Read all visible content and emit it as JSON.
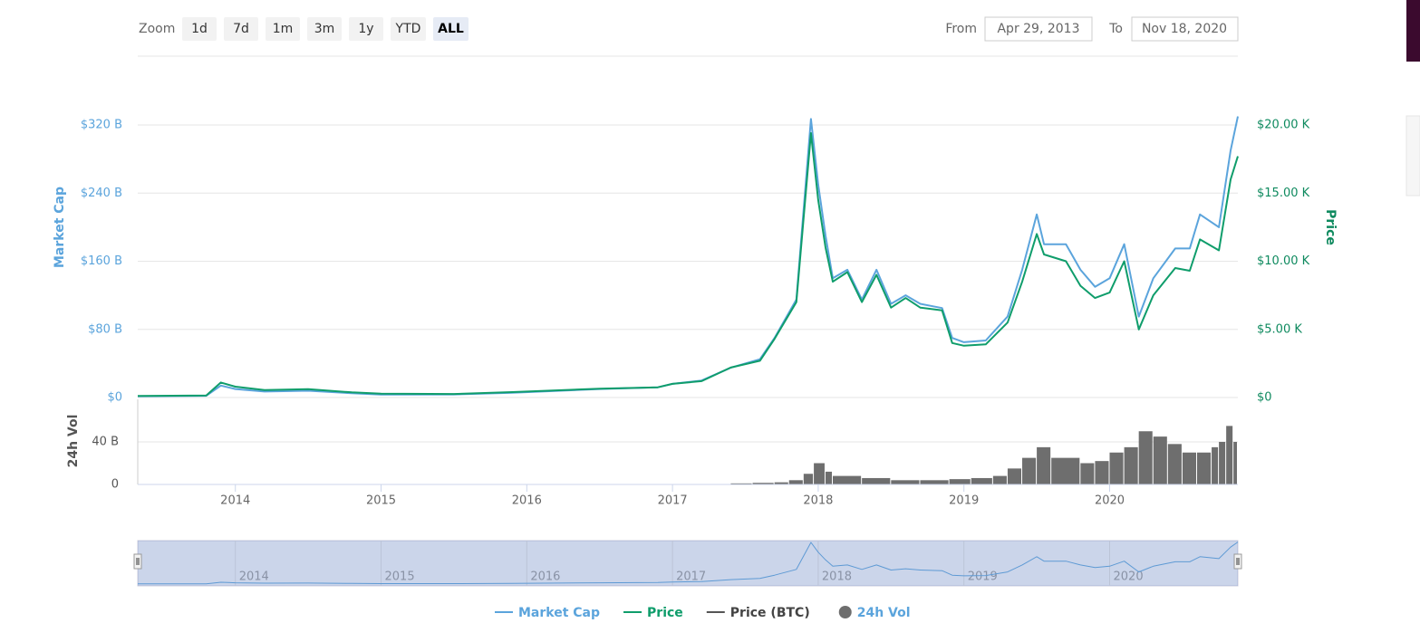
{
  "range_selector": {
    "zoom_label": "Zoom",
    "zoom_buttons": [
      "1d",
      "7d",
      "1m",
      "3m",
      "1y",
      "YTD",
      "ALL"
    ],
    "selected": "ALL",
    "from_label": "From",
    "from": "Apr 29, 2013",
    "to_label": "To",
    "to": "Nov 18, 2020"
  },
  "chart_data": [
    {
      "type": "line",
      "y_label": "Market Cap",
      "y2_label": "Price",
      "x": [
        2013.33,
        2013.8,
        2013.9,
        2014.0,
        2014.2,
        2014.5,
        2014.8,
        2015.0,
        2015.5,
        2015.9,
        2016.5,
        2016.9,
        2017.0,
        2017.2,
        2017.4,
        2017.6,
        2017.7,
        2017.85,
        2017.95,
        2018.0,
        2018.05,
        2018.1,
        2018.2,
        2018.3,
        2018.4,
        2018.5,
        2018.6,
        2018.7,
        2018.85,
        2018.92,
        2019.0,
        2019.15,
        2019.3,
        2019.4,
        2019.5,
        2019.55,
        2019.7,
        2019.8,
        2019.9,
        2020.0,
        2020.1,
        2020.2,
        2020.3,
        2020.45,
        2020.55,
        2020.62,
        2020.75,
        2020.83,
        2020.88
      ],
      "xlim": [
        2013.33,
        2020.88
      ],
      "xticks": [
        2014,
        2015,
        2016,
        2017,
        2018,
        2019,
        2020
      ],
      "ylim": [
        0,
        320
      ],
      "yticks": [
        {
          "value": 0,
          "label": "$0"
        },
        {
          "value": 80,
          "label": "$80 B"
        },
        {
          "value": 160,
          "label": "$160 B"
        },
        {
          "value": 240,
          "label": "$240 B"
        },
        {
          "value": 320,
          "label": "$320 B"
        }
      ],
      "y2lim": [
        0,
        20
      ],
      "y2ticks": [
        {
          "value": 0,
          "label": "$0"
        },
        {
          "value": 5,
          "label": "$5.00 K"
        },
        {
          "value": 10,
          "label": "$10.00 K"
        },
        {
          "value": 15,
          "label": "$15.00 K"
        },
        {
          "value": 20,
          "label": "$20.00 K"
        }
      ],
      "grid": true,
      "series": [
        {
          "name": "Market Cap",
          "color": "#5ba4dc",
          "axis": "y",
          "values": [
            1.5,
            2,
            14,
            10,
            7,
            8,
            5,
            3.5,
            3.6,
            5.5,
            10,
            12,
            16,
            20,
            35,
            45,
            70,
            115,
            327,
            250,
            190,
            140,
            150,
            115,
            150,
            110,
            120,
            110,
            105,
            70,
            65,
            67,
            95,
            150,
            215,
            180,
            180,
            150,
            130,
            140,
            180,
            95,
            140,
            175,
            175,
            215,
            200,
            290,
            330
          ]
        },
        {
          "name": "Price",
          "color": "#0f9d6b",
          "axis": "y2",
          "values": [
            0.11,
            0.15,
            1.1,
            0.8,
            0.55,
            0.62,
            0.38,
            0.28,
            0.26,
            0.4,
            0.65,
            0.75,
            1.0,
            1.2,
            2.2,
            2.7,
            4.3,
            7.0,
            19.4,
            14.5,
            11.0,
            8.5,
            9.2,
            7.0,
            9.0,
            6.6,
            7.3,
            6.6,
            6.4,
            4.0,
            3.8,
            3.9,
            5.5,
            8.5,
            12.0,
            10.5,
            10.0,
            8.2,
            7.3,
            7.7,
            10.0,
            5.0,
            7.5,
            9.5,
            9.3,
            11.6,
            10.8,
            16,
            17.7
          ]
        },
        {
          "name": "Price (BTC)",
          "color": "#555555",
          "axis": "y",
          "values": [
            null,
            null,
            null,
            null,
            null,
            null,
            null,
            null,
            null,
            null,
            null,
            null,
            null,
            null,
            null,
            null,
            null,
            null,
            null,
            null,
            null,
            null,
            null,
            null,
            null,
            null,
            null,
            null,
            null,
            null,
            null,
            null,
            null,
            null,
            null,
            null,
            null,
            null,
            null,
            null,
            null,
            null,
            null,
            null,
            null,
            null,
            null,
            null,
            null
          ]
        }
      ]
    },
    {
      "type": "bar",
      "y_label": "24h Vol",
      "x": [
        2017.4,
        2017.55,
        2017.7,
        2017.8,
        2017.9,
        2017.97,
        2018.05,
        2018.1,
        2018.3,
        2018.5,
        2018.7,
        2018.9,
        2019.05,
        2019.2,
        2019.3,
        2019.4,
        2019.5,
        2019.6,
        2019.8,
        2019.9,
        2020.0,
        2020.1,
        2020.2,
        2020.3,
        2020.4,
        2020.5,
        2020.6,
        2020.7,
        2020.75,
        2020.8,
        2020.85
      ],
      "xlim": [
        2013.33,
        2020.88
      ],
      "ylim": [
        0,
        80
      ],
      "yticks": [
        0,
        {
          "value": 40,
          "label": "40 B"
        }
      ],
      "series": [
        {
          "name": "24h Vol",
          "color": "#6e6e6e",
          "values": [
            1,
            1.5,
            2,
            4,
            10,
            20,
            12,
            8,
            6,
            4,
            4,
            5,
            6,
            8,
            15,
            25,
            35,
            25,
            20,
            22,
            30,
            35,
            50,
            45,
            38,
            30,
            30,
            35,
            40,
            55,
            40
          ]
        }
      ]
    }
  ]
}
